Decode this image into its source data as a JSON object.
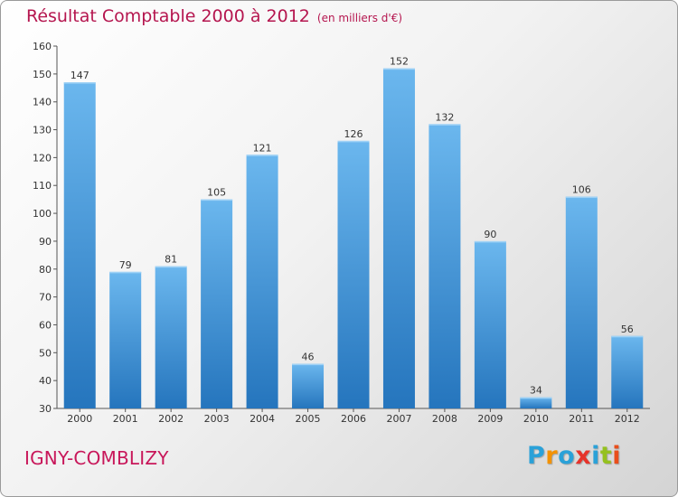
{
  "title": "Résultat Comptable 2000 à 2012",
  "unit": "(en milliers d'€)",
  "city": "IGNY-COMBLIZY",
  "logo": {
    "letters": [
      "P",
      "r",
      "o",
      "x",
      "i",
      "t",
      "i"
    ],
    "colors": [
      "#2aa1d8",
      "#f39200",
      "#2aa1d8",
      "#e6332a",
      "#2aa1d8",
      "#95c11f",
      "#e94e1b"
    ]
  },
  "colors": {
    "bar": "#3d9be0",
    "bar_light": "#6bb7ee",
    "bar_dark": "#2575bd",
    "title": "#b5164f"
  },
  "chart_data": {
    "type": "bar",
    "title": "Résultat Comptable 2000 à 2012",
    "categories": [
      "2000",
      "2001",
      "2002",
      "2003",
      "2004",
      "2005",
      "2006",
      "2007",
      "2008",
      "2009",
      "2010",
      "2011",
      "2012"
    ],
    "values": [
      147,
      79,
      81,
      105,
      121,
      46,
      126,
      152,
      132,
      90,
      34,
      106,
      56
    ],
    "yticks": [
      30,
      40,
      50,
      60,
      70,
      80,
      90,
      100,
      110,
      120,
      130,
      140,
      150,
      160
    ],
    "ylim": [
      30,
      160
    ],
    "xlabel": "",
    "ylabel": "",
    "grid": false
  }
}
